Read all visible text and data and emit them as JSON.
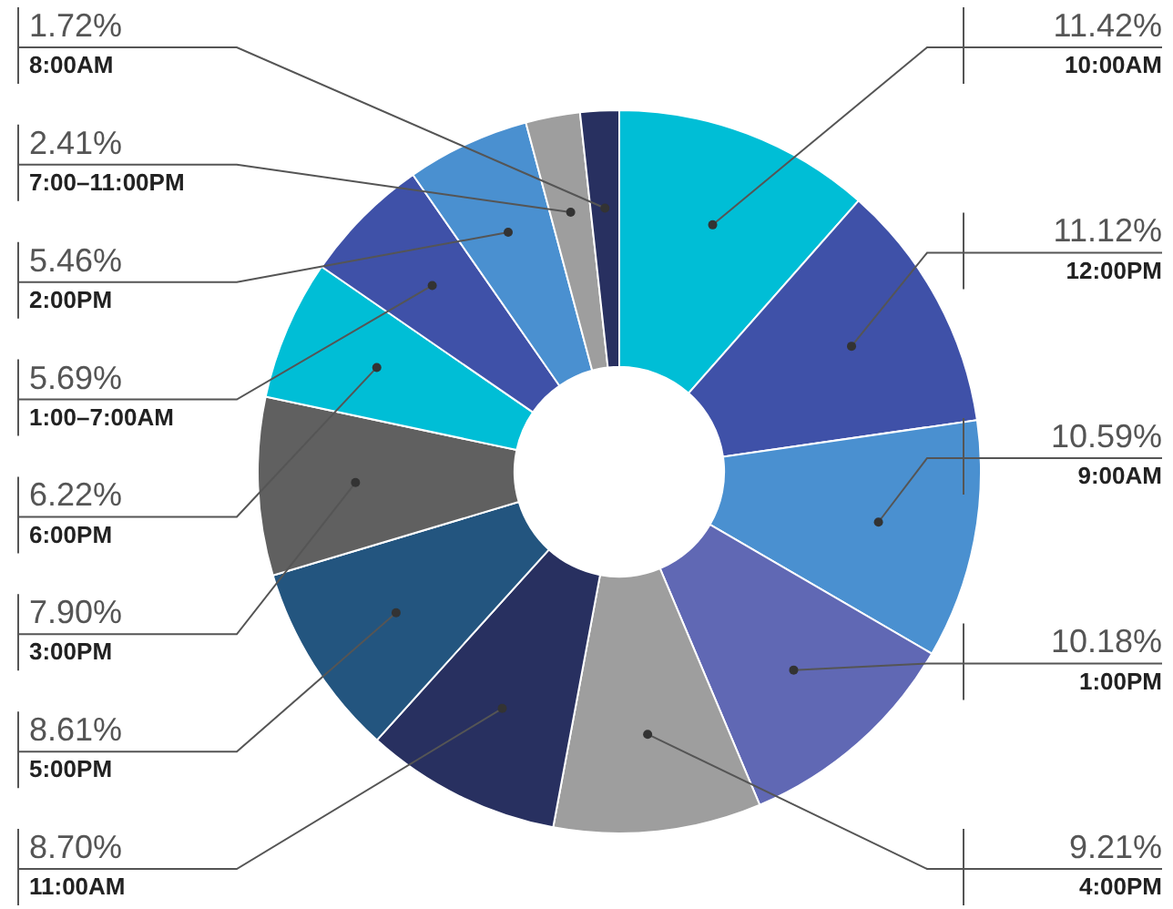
{
  "chart_data": {
    "type": "donut",
    "categories": [
      "10:00AM",
      "12:00PM",
      "9:00AM",
      "1:00PM",
      "4:00PM",
      "11:00AM",
      "5:00PM",
      "3:00PM",
      "6:00PM",
      "1:00–7:00AM",
      "2:00PM",
      "7:00–11:00PM",
      "8:00AM"
    ],
    "values": [
      11.42,
      11.12,
      10.59,
      10.18,
      9.21,
      8.7,
      8.61,
      7.9,
      6.22,
      5.69,
      5.46,
      2.41,
      1.72
    ],
    "value_labels": [
      "11.42%",
      "11.12%",
      "10.59%",
      "10.18%",
      "9.21%",
      "8.70%",
      "8.61%",
      "7.90%",
      "6.22%",
      "5.69%",
      "5.46%",
      "2.41%",
      "1.72%"
    ],
    "colors": [
      "#00bed6",
      "#3f51a8",
      "#4a90d0",
      "#6068b4",
      "#9e9e9e",
      "#283060",
      "#23557f",
      "#606060",
      "#00bed6",
      "#3f51a8",
      "#4a90d0",
      "#9e9e9e",
      "#283060"
    ],
    "legend": false
  }
}
